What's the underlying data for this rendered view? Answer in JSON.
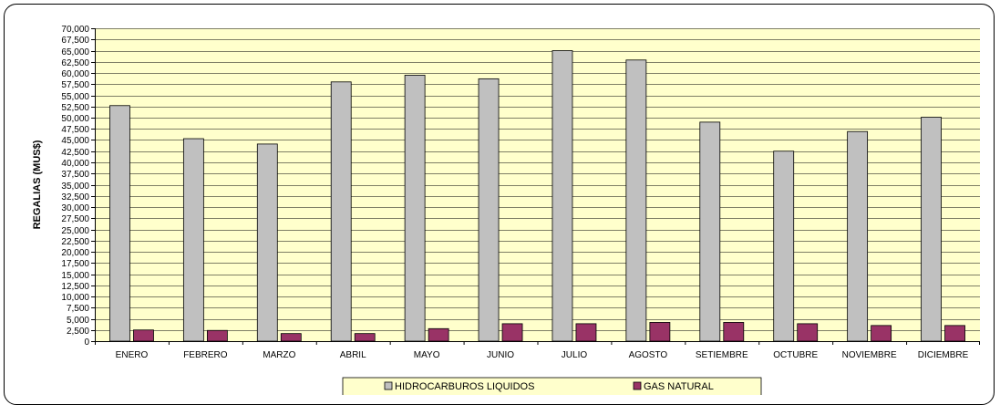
{
  "chart_data": {
    "type": "bar",
    "title": "",
    "xlabel": "",
    "ylabel": "REGALIAS (MUS$)",
    "ylim": [
      0,
      70000
    ],
    "ytick_step": 2500,
    "grid": true,
    "legend_position": "bottom",
    "categories": [
      "ENERO",
      "FEBRERO",
      "MARZO",
      "ABRIL",
      "MAYO",
      "JUNIO",
      "JULIO",
      "AGOSTO",
      "SETIEMBRE",
      "OCTUBRE",
      "NOVIEMBRE",
      "DICIEMBRE"
    ],
    "series": [
      {
        "name": "HIDROCARBUROS LIQUIDOS",
        "color": "#c0c0c0",
        "values": [
          52700,
          45300,
          44100,
          58000,
          59500,
          58700,
          65000,
          62900,
          49000,
          42500,
          46900,
          50100
        ]
      },
      {
        "name": "GAS NATURAL",
        "color": "#993366",
        "values": [
          2500,
          2400,
          1700,
          1700,
          2800,
          3900,
          3900,
          4200,
          4200,
          3900,
          3500,
          3500
        ]
      }
    ],
    "colors": {
      "plot_background": "#ffffcc",
      "grid": "#000000"
    }
  }
}
